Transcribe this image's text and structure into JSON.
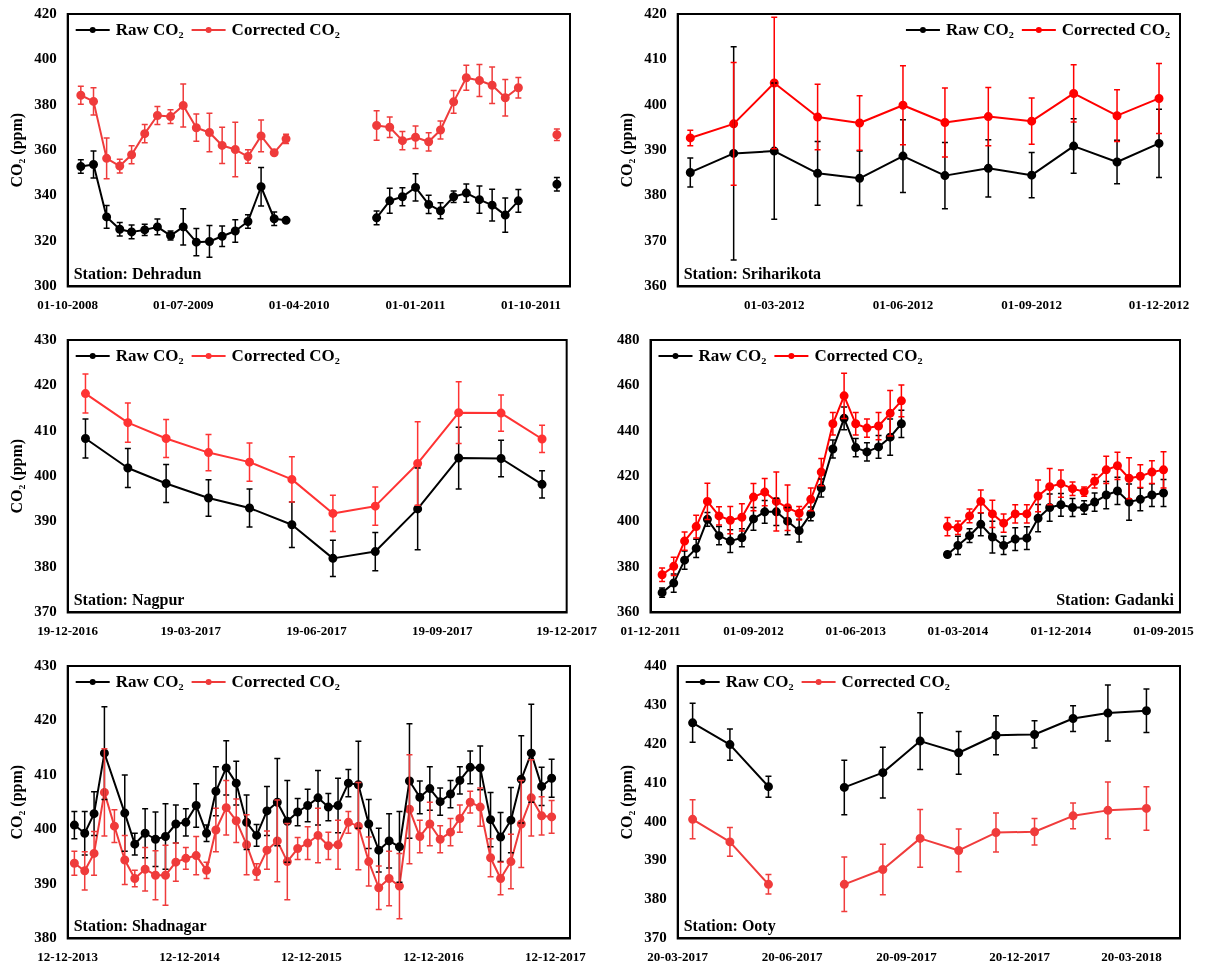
{
  "chart_data": [
    {
      "type": "line",
      "ylabel": "CO₂ (ppm)",
      "legend": "top left",
      "marker": "circle",
      "grid": false,
      "line_style": "solid",
      "xlim": [
        "2008-10-01",
        "2012-01-01"
      ],
      "ylim": [
        300,
        420
      ],
      "yticks": [
        300,
        320,
        340,
        360,
        380,
        400,
        420
      ],
      "xticks": [
        {
          "value": "2008-10-01",
          "label": "01-10-2008"
        },
        {
          "value": "2009-07-01",
          "label": "01-07-2009"
        },
        {
          "value": "2010-04-01",
          "label": "01-04-2010"
        },
        {
          "value": "2011-01-01",
          "label": "01-01-2011"
        },
        {
          "value": "2011-10-01",
          "label": "01-10-2011"
        }
      ],
      "x": [
        "2008-11-01",
        "2008-12-01",
        "2009-01-01",
        "2009-02-01",
        "2009-03-01",
        "2009-04-01",
        "2009-05-01",
        "2009-06-01",
        "2009-07-01",
        "2009-08-01",
        "2009-09-01",
        "2009-10-01",
        "2009-11-01",
        "2009-12-01",
        "2010-01-01",
        "2010-02-01",
        "2010-03-01",
        "2010-07-01",
        "2010-10-01",
        "2010-11-01",
        "2010-12-01",
        "2011-01-01",
        "2011-02-01",
        "2011-03-01",
        "2011-04-01",
        "2011-05-01",
        "2011-06-01",
        "2011-07-01",
        "2011-08-01",
        "2011-09-01",
        "2011-11-01",
        "2011-12-01"
      ],
      "series": [
        {
          "name": "Raw CO₂",
          "color": "#000000",
          "values": [
            352.8,
            353.7,
            330.6,
            325.2,
            324,
            324.9,
            326.2,
            322.4,
            326.2,
            319.5,
            319.8,
            322.1,
            324.4,
            328.6,
            343.9,
            329.8,
            329.1,
            null,
            330.2,
            337.7,
            339.5,
            343.6,
            336.1,
            333.3,
            339.5,
            341.1,
            338.2,
            335.8,
            331.4,
            337.7,
            null,
            345
          ],
          "errors": [
            3,
            6,
            5,
            3,
            3,
            2.5,
            3.5,
            2,
            8,
            6,
            7,
            4.5,
            5,
            3,
            8.5,
            3,
            null,
            null,
            3,
            5.5,
            4,
            6,
            4,
            3.5,
            2.5,
            4,
            6,
            7,
            7.5,
            5,
            null,
            3
          ]
        },
        {
          "name": "Corrected CO₂",
          "color": "#ef3b3b",
          "values": [
            384.2,
            381.5,
            356.4,
            353,
            358,
            367.3,
            375.3,
            374.8,
            379.7,
            369.9,
            367.8,
            362.1,
            360.3,
            357.2,
            366.3,
            358.9,
            365,
            null,
            370.9,
            370.1,
            364.2,
            365.7,
            363.7,
            368.9,
            381.3,
            391.9,
            390.7,
            388.6,
            383.1,
            387.5,
            null,
            366.8
          ],
          "errors": [
            4,
            6,
            9,
            3,
            4,
            4,
            4,
            3,
            9.5,
            6,
            8.5,
            8,
            12,
            3,
            7,
            1,
            2,
            null,
            6.5,
            4.5,
            4,
            5,
            4,
            4,
            5,
            5.5,
            7,
            8,
            8,
            4.5,
            null,
            2.5
          ]
        }
      ],
      "annotations": [
        "Station: Dehradun"
      ]
    },
    {
      "type": "line",
      "ylabel": "CO₂ (ppm)",
      "legend": "top right",
      "marker": "circle",
      "grid": false,
      "line_style": "solid",
      "xlim": [
        "2011-12-23",
        "2012-12-16"
      ],
      "ylim": [
        360,
        420
      ],
      "yticks": [
        360,
        370,
        380,
        390,
        400,
        410,
        420
      ],
      "xticks": [
        {
          "value": "2012-03-01",
          "label": "01-03-2012"
        },
        {
          "value": "2012-06-01",
          "label": "01-06-2012"
        },
        {
          "value": "2012-09-01",
          "label": "01-09-2012"
        },
        {
          "value": "2012-12-01",
          "label": "01-12-2012"
        }
      ],
      "x": [
        "2012-01-01",
        "2012-02-01",
        "2012-03-01",
        "2012-04-01",
        "2012-05-01",
        "2012-06-01",
        "2012-07-01",
        "2012-08-01",
        "2012-09-01",
        "2012-10-01",
        "2012-11-01",
        "2012-12-01"
      ],
      "series": [
        {
          "name": "Raw CO₂",
          "color": "#000000",
          "values": [
            385.1,
            389.3,
            389.8,
            384.9,
            383.8,
            388.7,
            384.4,
            386,
            384.5,
            390.9,
            387.4,
            391.5
          ],
          "errors": [
            3.2,
            23.5,
            15,
            7,
            6,
            8,
            7.3,
            6.3,
            5,
            6,
            4.8,
            7.5
          ]
        },
        {
          "name": "Corrected CO₂",
          "color": "#ff0000",
          "values": [
            392.7,
            395.8,
            404.8,
            397.3,
            396,
            399.9,
            396.1,
            397.4,
            396.4,
            402.5,
            397.6,
            401.4
          ],
          "errors": [
            1.7,
            13.5,
            14.5,
            7.2,
            6,
            8.7,
            7.6,
            6.4,
            5.1,
            6.3,
            5.7,
            7.7
          ]
        }
      ],
      "annotations": [
        "Station: Sriharikota"
      ]
    },
    {
      "type": "line",
      "ylabel": "CO₂ (ppm)",
      "legend": "top left",
      "marker": "circle",
      "grid": false,
      "line_style": "solid",
      "xlim": [
        "2016-12-19",
        "2017-12-19"
      ],
      "ylim": [
        370,
        430
      ],
      "yticks": [
        370,
        380,
        390,
        400,
        410,
        420,
        430
      ],
      "xticks": [
        {
          "value": "2016-12-19",
          "label": "19-12-2016"
        },
        {
          "value": "2017-03-19",
          "label": "19-03-2017"
        },
        {
          "value": "2017-06-19",
          "label": "19-06-2017"
        },
        {
          "value": "2017-09-19",
          "label": "19-09-2017"
        },
        {
          "value": "2017-12-19",
          "label": "19-12-2017"
        }
      ],
      "x": [
        "2017-01-01",
        "2017-02-01",
        "2017-03-01",
        "2017-04-01",
        "2017-05-01",
        "2017-06-01",
        "2017-07-01",
        "2017-08-01",
        "2017-09-01",
        "2017-10-01",
        "2017-11-01",
        "2017-12-01"
      ],
      "series": [
        {
          "name": "Raw CO₂",
          "color": "#000000",
          "values": [
            408.3,
            401.8,
            398.4,
            395.2,
            393,
            389.3,
            381.9,
            383.4,
            392.8,
            404,
            403.9,
            398.2
          ],
          "errors": [
            4.3,
            4.3,
            4.2,
            4,
            4.2,
            5,
            4,
            4.2,
            9,
            6.8,
            4,
            3
          ]
        },
        {
          "name": "Corrected CO₂",
          "color": "#ff3333",
          "values": [
            418.2,
            411.8,
            408.3,
            405.2,
            403.1,
            399.3,
            391.8,
            393.4,
            402.8,
            414,
            413.9,
            408.2
          ],
          "errors": [
            4.3,
            4.3,
            4.2,
            4,
            4.2,
            5,
            4,
            4.2,
            9.2,
            6.8,
            4,
            3
          ]
        }
      ],
      "annotations": [
        "Station: Nagpur"
      ]
    },
    {
      "type": "line",
      "legend": "top left",
      "marker": "circle",
      "grid": false,
      "line_style": "solid",
      "xlim": [
        "2011-12-01",
        "2015-10-15"
      ],
      "ylim": [
        360,
        480
      ],
      "yticks": [
        360,
        380,
        400,
        420,
        440,
        460,
        480
      ],
      "xticks": [
        {
          "value": "2011-12-01",
          "label": "01-12-2011"
        },
        {
          "value": "2012-09-01",
          "label": "01-09-2012"
        },
        {
          "value": "2013-06-01",
          "label": "01-06-2013"
        },
        {
          "value": "2014-03-01",
          "label": "01-03-2014"
        },
        {
          "value": "2014-12-01",
          "label": "01-12-2014"
        },
        {
          "value": "2015-09-01",
          "label": "01-09-2015"
        }
      ],
      "x": [
        "2012-01-01",
        "2012-02-01",
        "2012-03-01",
        "2012-04-01",
        "2012-05-01",
        "2012-06-01",
        "2012-07-01",
        "2012-08-01",
        "2012-09-01",
        "2012-10-01",
        "2012-11-01",
        "2012-12-01",
        "2013-01-01",
        "2013-02-01",
        "2013-03-01",
        "2013-04-01",
        "2013-05-01",
        "2013-06-01",
        "2013-07-01",
        "2013-08-01",
        "2013-09-01",
        "2013-10-01",
        "2013-12-01",
        "2014-02-01",
        "2014-03-01",
        "2014-04-01",
        "2014-05-01",
        "2014-06-01",
        "2014-07-01",
        "2014-08-01",
        "2014-09-01",
        "2014-10-01",
        "2014-11-01",
        "2014-12-01",
        "2015-01-01",
        "2015-02-01",
        "2015-03-01",
        "2015-04-01",
        "2015-05-01",
        "2015-06-01",
        "2015-07-01",
        "2015-08-01",
        "2015-09-01"
      ],
      "series": [
        {
          "name": "Raw CO₂",
          "color": "#000000",
          "values": [
            368.7,
            372.9,
            383,
            388.2,
            401,
            393.8,
            391.4,
            392.9,
            401.2,
            404.3,
            404.3,
            400.2,
            396,
            403.4,
            414.8,
            432,
            445.5,
            432.6,
            430.7,
            432.9,
            437.2,
            443.1,
            null,
            385.5,
            389.5,
            393.8,
            398.8,
            393.2,
            389.5,
            392.3,
            392.7,
            401.5,
            406.2,
            407.4,
            406.2,
            406.2,
            408.6,
            411.7,
            413.5,
            408.6,
            409.8,
            411.7,
            412.6
          ],
          "errors": [
            2,
            4,
            4,
            4,
            3,
            4,
            5,
            4,
            5,
            5,
            6,
            6,
            5,
            3,
            4,
            4,
            5,
            4,
            4,
            5,
            8,
            6,
            null,
            1,
            4,
            3,
            5,
            7,
            4,
            5,
            5,
            6,
            6,
            5,
            4,
            3,
            4,
            6,
            6,
            8,
            5,
            5,
            6
          ]
        },
        {
          "name": "Corrected CO₂",
          "color": "#ff0000",
          "values": [
            376.6,
            380.3,
            391.4,
            397.8,
            408.9,
            402.5,
            400.6,
            401.9,
            410.8,
            413,
            408.9,
            406.1,
            403.7,
            409.8,
            421.8,
            443.1,
            455.4,
            443.1,
            441.2,
            442.1,
            447.7,
            453.2,
            null,
            397.8,
            397.3,
            402.5,
            408.9,
            403.4,
            399.3,
            403.4,
            403.4,
            411.3,
            415.4,
            416.7,
            414.5,
            413.2,
            417.8,
            422.8,
            424.6,
            419.1,
            420,
            421.8,
            422.8
          ],
          "errors": [
            3,
            4,
            4,
            5,
            8,
            4,
            6,
            6,
            6,
            6,
            13,
            10,
            3,
            5,
            6,
            5,
            10,
            5,
            4,
            6,
            10,
            7,
            null,
            4,
            3,
            3,
            5,
            6,
            4,
            4,
            4,
            7,
            8,
            6,
            3,
            2,
            3,
            6,
            6,
            9,
            5,
            5,
            8
          ]
        }
      ],
      "annotations": [
        "Station: Gadanki"
      ]
    },
    {
      "type": "line",
      "ylabel": "CO₂ (ppm)",
      "legend": "top left",
      "marker": "circle",
      "grid": false,
      "line_style": "solid",
      "xlim": [
        "2013-12-12",
        "2018-01-25"
      ],
      "ylim": [
        380,
        430
      ],
      "yticks": [
        380,
        390,
        400,
        410,
        420,
        430
      ],
      "xticks": [
        {
          "value": "2013-12-12",
          "label": "12-12-2013"
        },
        {
          "value": "2014-12-12",
          "label": "12-12-2014"
        },
        {
          "value": "2015-12-12",
          "label": "12-12-2015"
        },
        {
          "value": "2016-12-12",
          "label": "12-12-2016"
        },
        {
          "value": "2017-12-12",
          "label": "12-12-2017"
        }
      ],
      "x": [
        "2014-01-01",
        "2014-02-01",
        "2014-03-01",
        "2014-04-01",
        "2014-05-01",
        "2014-06-01",
        "2014-07-01",
        "2014-08-01",
        "2014-09-01",
        "2014-10-01",
        "2014-11-01",
        "2014-12-01",
        "2015-01-01",
        "2015-02-01",
        "2015-03-01",
        "2015-04-01",
        "2015-05-01",
        "2015-06-01",
        "2015-07-01",
        "2015-08-01",
        "2015-09-01",
        "2015-10-01",
        "2015-11-01",
        "2015-12-01",
        "2016-01-01",
        "2016-02-01",
        "2016-03-01",
        "2016-04-01",
        "2016-05-01",
        "2016-06-01",
        "2016-07-01",
        "2016-08-01",
        "2016-09-01",
        "2016-10-01",
        "2016-11-01",
        "2016-12-01",
        "2017-01-01",
        "2017-02-01",
        "2017-03-01",
        "2017-04-01",
        "2017-05-01",
        "2017-06-01",
        "2017-07-01",
        "2017-08-01",
        "2017-09-01",
        "2017-10-01",
        "2017-11-01",
        "2017-12-01"
      ],
      "series": [
        {
          "name": "Raw CO₂",
          "color": "#000000",
          "x": [
            "2014-01-01",
            "2014-02-01",
            "2014-03-01",
            "2014-04-01",
            "2014-06-01",
            "2014-07-01",
            "2014-08-01",
            "2014-09-01",
            "2014-10-01",
            "2014-11-01",
            "2014-12-01",
            "2015-01-01",
            "2015-02-01",
            "2015-03-01",
            "2015-04-01",
            "2015-05-01",
            "2015-06-01",
            "2015-07-01",
            "2015-08-01",
            "2015-09-01",
            "2015-10-01",
            "2015-11-01",
            "2015-12-01",
            "2016-01-01",
            "2016-02-01",
            "2016-03-01",
            "2016-04-01",
            "2016-05-01",
            "2016-06-01",
            "2016-07-01",
            "2016-08-01",
            "2016-09-01",
            "2016-10-01",
            "2016-11-01",
            "2016-12-01",
            "2017-01-01",
            "2017-02-01",
            "2017-03-01",
            "2017-04-01",
            "2017-05-01",
            "2017-06-01",
            "2017-07-01",
            "2017-08-01",
            "2017-09-01",
            "2017-10-01",
            "2017-11-01",
            "2017-12-01"
          ],
          "values": [
            400.8,
            399.3,
            402.9,
            414,
            403,
            397.3,
            399.3,
            398.2,
            398.7,
            401,
            401.3,
            404.4,
            399.3,
            407,
            411.3,
            408.5,
            401.3,
            398.9,
            403.4,
            405,
            401.5,
            403.2,
            404.4,
            405.8,
            404.1,
            404.4,
            408.5,
            408.2,
            401,
            396.2,
            397.9,
            396.8,
            408.9,
            405.9,
            407.5,
            405.1,
            406.5,
            409,
            411.4,
            411.3,
            401.8,
            398.6,
            401.7,
            409.2,
            414,
            407.9,
            409.4
          ],
          "errors": [
            2.5,
            4,
            4,
            8.5,
            7,
            2,
            4.5,
            5,
            6,
            3.5,
            2.5,
            4,
            1.5,
            4.5,
            5,
            4,
            5,
            2,
            4.5,
            8,
            7.5,
            2.5,
            3,
            5,
            2.5,
            5,
            2.5,
            8,
            4.5,
            4,
            5,
            6.5,
            10.5,
            3,
            4,
            2.5,
            2.5,
            2.5,
            3,
            4,
            5,
            4.5,
            6,
            8,
            9,
            3.5,
            3.5
          ]
        },
        {
          "name": "Corrected CO₂",
          "color": "#ef3b3b",
          "values": [
            393.8,
            392.4,
            395.6,
            406.8,
            400.6,
            394.4,
            391,
            392.7,
            391.6,
            391.6,
            394,
            394.7,
            395.2,
            392.5,
            399.9,
            404,
            401.6,
            397.2,
            392.2,
            396.2,
            397.9,
            394.1,
            396.5,
            397.5,
            398.9,
            397,
            397.2,
            401.3,
            400.6,
            394.1,
            389.3,
            391,
            389.6,
            403.7,
            398.7,
            401,
            398.2,
            399.5,
            402,
            405,
            404.1,
            394.8,
            391,
            394.1,
            401,
            405.8,
            402.5,
            402.3
          ],
          "errors": [
            2.2,
            3.5,
            4,
            8,
            3,
            4.5,
            1.5,
            4,
            4.5,
            5.5,
            3.5,
            2,
            3.5,
            1.5,
            4,
            5,
            4,
            5.5,
            1.5,
            3.5,
            7.5,
            7,
            2,
            3,
            5,
            2.5,
            4.5,
            2,
            8,
            4.5,
            4,
            5,
            6,
            10,
            3,
            4,
            2.5,
            2.5,
            2.5,
            2,
            3.5,
            3.5,
            3,
            5,
            8,
            7,
            3.5,
            3
          ]
        }
      ],
      "annotations": [
        "Station: Shadnagar"
      ]
    },
    {
      "type": "line",
      "ylabel": "CO₂ (ppm)",
      "legend": "top left",
      "marker": "circle",
      "grid": false,
      "line_style": "solid",
      "xlim": [
        "2017-03-20",
        "2018-04-28"
      ],
      "ylim": [
        370,
        440
      ],
      "yticks": [
        370,
        380,
        390,
        400,
        410,
        420,
        430,
        440
      ],
      "xticks": [
        {
          "value": "2017-03-20",
          "label": "20-03-2017"
        },
        {
          "value": "2017-06-20",
          "label": "20-06-2017"
        },
        {
          "value": "2017-09-20",
          "label": "20-09-2017"
        },
        {
          "value": "2017-12-20",
          "label": "20-12-2017"
        },
        {
          "value": "2018-03-20",
          "label": "20-03-2018"
        }
      ],
      "x": [
        "2017-04-01",
        "2017-05-01",
        "2017-06-01",
        "2017-07-01",
        "2017-08-01",
        "2017-09-01",
        "2017-10-01",
        "2017-11-01",
        "2017-12-01",
        "2018-01-01",
        "2018-02-01",
        "2018-03-01",
        "2018-04-01"
      ],
      "series": [
        {
          "name": "Raw CO₂",
          "color": "#000000",
          "values": [
            425.4,
            419.8,
            409,
            null,
            408.8,
            412.6,
            420.7,
            417.7,
            422.2,
            422.4,
            426.5,
            427.9,
            428.5
          ],
          "errors": [
            5,
            4,
            2.7,
            null,
            7,
            6.5,
            7.3,
            5.5,
            5,
            3.5,
            3.3,
            7.2,
            5.6
          ]
        },
        {
          "name": "Corrected CO₂",
          "color": "#f03c3c",
          "values": [
            400.6,
            394.8,
            383.9,
            null,
            383.9,
            387.7,
            395.7,
            392.6,
            397.2,
            397.4,
            401.5,
            402.9,
            403.4
          ],
          "errors": [
            5,
            3.7,
            2.5,
            null,
            7,
            6.5,
            7.4,
            5.5,
            5,
            3.4,
            3.3,
            7.3,
            5.6
          ]
        }
      ],
      "annotations": [
        "Station: Ooty"
      ]
    }
  ]
}
